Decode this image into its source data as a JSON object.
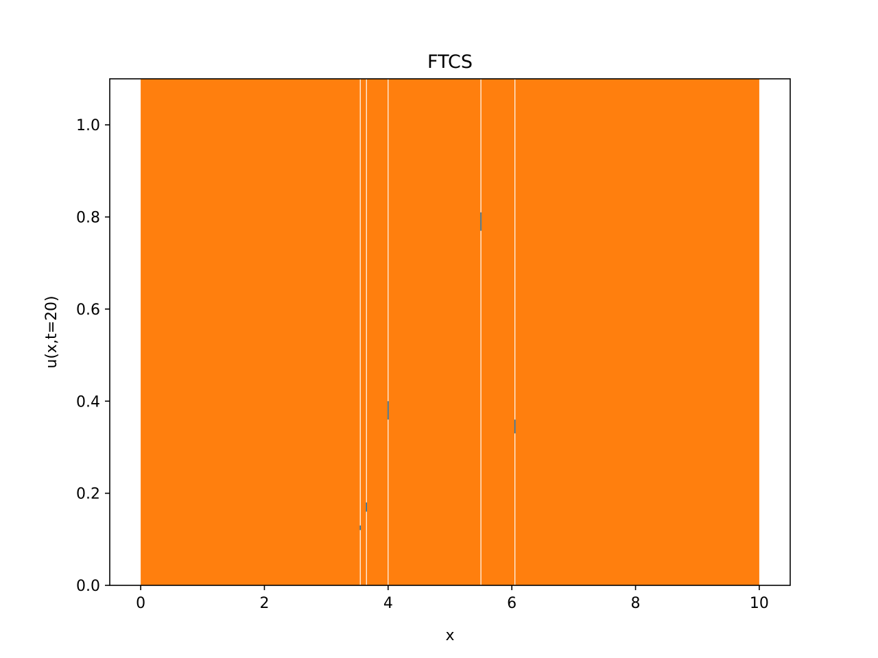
{
  "chart_data": {
    "type": "area",
    "title": "FTCS",
    "xlabel": "x",
    "ylabel": "u(x,t=20)",
    "xlim": [
      -0.5,
      10.5
    ],
    "ylim": [
      0.0,
      1.1
    ],
    "xticks": [
      0,
      2,
      4,
      6,
      8,
      10
    ],
    "yticks": [
      0.0,
      0.2,
      0.4,
      0.6,
      0.8,
      1.0
    ],
    "xtick_labels": [
      "0",
      "2",
      "4",
      "6",
      "8",
      "10"
    ],
    "ytick_labels": [
      "0.0",
      "0.2",
      "0.4",
      "0.6",
      "0.8",
      "1.0"
    ],
    "grid": false,
    "series": [
      {
        "color": "#ff7f0e",
        "x_range": [
          0,
          10
        ],
        "fill_from": 0,
        "fill_to": 1.1,
        "gaps_x": [
          3.55,
          3.65,
          4.0,
          5.5,
          6.05
        ]
      },
      {
        "color": "#1f77b4",
        "segments": [
          {
            "x": 3.55,
            "y": [
              0.12,
              0.13
            ]
          },
          {
            "x": 3.65,
            "y": [
              0.16,
              0.18
            ]
          },
          {
            "x": 4.0,
            "y": [
              0.36,
              0.4
            ]
          },
          {
            "x": 5.5,
            "y": [
              0.77,
              0.81
            ]
          },
          {
            "x": 6.05,
            "y": [
              0.33,
              0.36
            ]
          }
        ]
      }
    ]
  }
}
